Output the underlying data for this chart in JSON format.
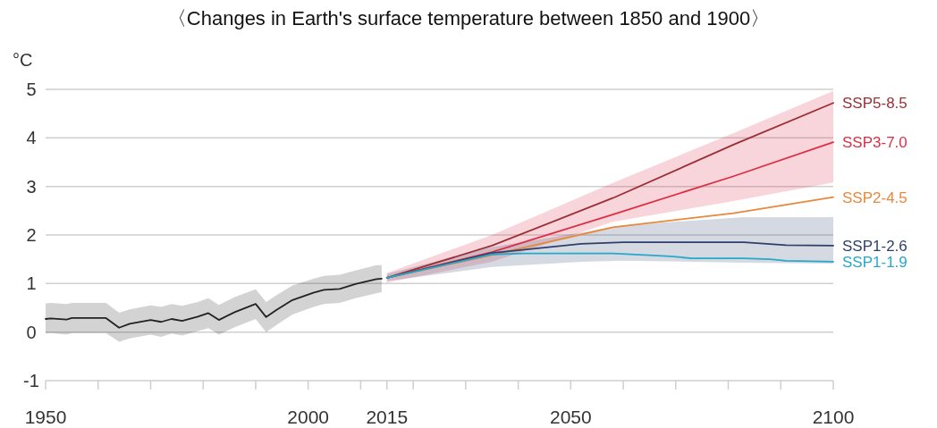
{
  "chart_data": {
    "type": "line",
    "title": "〈Changes in Earth's surface temperature between 1850 and 1900〉",
    "ylabel": "°C",
    "xlim": [
      1950,
      2100
    ],
    "ylim": [
      -1,
      5
    ],
    "xticks": [
      1950,
      {
        "value": 1960,
        "label": null
      },
      {
        "value": 1970,
        "label": null
      },
      {
        "value": 1980,
        "label": null
      },
      {
        "value": 1990,
        "label": null
      },
      2000,
      {
        "value": 2010,
        "label": null
      },
      2015,
      {
        "value": 2020,
        "label": null
      },
      {
        "value": 2030,
        "label": null
      },
      {
        "value": 2040,
        "label": null
      },
      2050,
      {
        "value": 2060,
        "label": null
      },
      {
        "value": 2070,
        "label": null
      },
      {
        "value": 2080,
        "label": null
      },
      {
        "value": 2090,
        "label": null
      },
      2100
    ],
    "yticks": [
      -1,
      0,
      1,
      2,
      3,
      4,
      5
    ],
    "grid": "y",
    "legend": false,
    "marker": "none",
    "line_style": "solid",
    "series": [
      {
        "color": "#222222",
        "x": [
          1950,
          1951,
          1954,
          1955,
          1961.5,
          1964,
          1966,
          1970,
          1972,
          1974,
          1976,
          1979,
          1981,
          1983,
          1986,
          1990,
          1992,
          1994,
          1997,
          2001,
          2003,
          2006,
          2009,
          2013,
          2014
        ],
        "values": [
          0.27,
          0.28,
          0.26,
          0.29,
          0.29,
          0.09,
          0.17,
          0.25,
          0.21,
          0.27,
          0.23,
          0.32,
          0.39,
          0.25,
          0.41,
          0.58,
          0.31,
          0.46,
          0.66,
          0.81,
          0.87,
          0.89,
          0.99,
          1.09,
          1.1
        ],
        "lower": [
          -0.03,
          -0.02,
          -0.05,
          -0.02,
          -0.02,
          -0.2,
          -0.13,
          -0.05,
          -0.1,
          -0.03,
          -0.07,
          0.02,
          0.08,
          -0.05,
          0.1,
          0.27,
          0.0,
          0.15,
          0.36,
          0.52,
          0.58,
          0.6,
          0.7,
          0.8,
          0.82
        ],
        "upper": [
          0.59,
          0.6,
          0.58,
          0.6,
          0.6,
          0.4,
          0.47,
          0.55,
          0.52,
          0.58,
          0.54,
          0.62,
          0.7,
          0.56,
          0.72,
          0.88,
          0.62,
          0.76,
          0.96,
          1.1,
          1.16,
          1.18,
          1.27,
          1.38,
          1.38
        ]
      },
      {
        "name": "SSP5-8.5",
        "color": "#9b2f35",
        "x": [
          2015,
          2035,
          2058,
          2081,
          2100
        ],
        "values": [
          1.12,
          1.78,
          2.76,
          3.86,
          4.72
        ]
      },
      {
        "name": "SSP3-7.0",
        "color": "#dc2f45",
        "x": [
          2015,
          2035,
          2058,
          2081,
          2100
        ],
        "values": [
          1.12,
          1.65,
          2.42,
          3.21,
          3.91
        ],
        "lower": [
          1.02,
          1.45,
          2.27,
          2.7,
          3.08
        ],
        "upper": [
          1.22,
          2.0,
          3.07,
          4.1,
          4.97
        ]
      },
      {
        "name": "SSP2-4.5",
        "color": "#e8883a",
        "x": [
          2015,
          2035,
          2058,
          2081,
          2100
        ],
        "values": [
          1.12,
          1.59,
          2.16,
          2.45,
          2.78
        ]
      },
      {
        "name": "SSP1-2.6",
        "color": "#2f3f6b",
        "x": [
          2015,
          2035,
          2052,
          2060,
          2083,
          2091,
          2100
        ],
        "values": [
          1.12,
          1.63,
          1.82,
          1.85,
          1.85,
          1.79,
          1.78
        ],
        "lower": [
          1.05,
          1.34,
          1.45,
          1.47,
          1.43,
          1.42,
          1.41
        ],
        "upper": [
          1.2,
          1.75,
          2.05,
          2.2,
          2.37,
          2.37,
          2.37
        ]
      },
      {
        "name": "SSP1-1.9",
        "color": "#26a8c9",
        "x": [
          2015,
          2035,
          2041,
          2058,
          2064,
          2069,
          2073,
          2083,
          2088,
          2091,
          2100
        ],
        "values": [
          1.12,
          1.6,
          1.62,
          1.62,
          1.59,
          1.56,
          1.52,
          1.52,
          1.5,
          1.47,
          1.45
        ]
      }
    ]
  }
}
